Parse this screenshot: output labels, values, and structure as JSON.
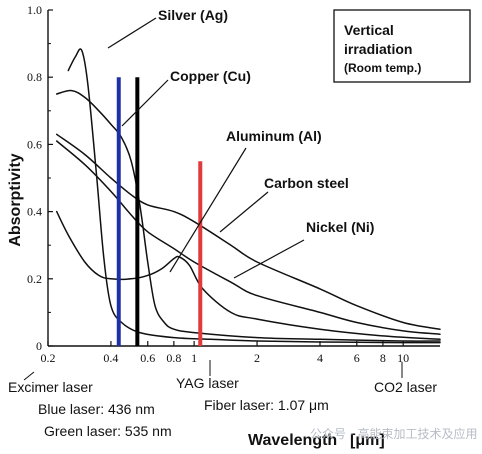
{
  "chart_data": {
    "type": "line",
    "ylabel": "Absorptivity",
    "xlabel": "Wavelength",
    "xlabel_unit": "[μm]",
    "x_scale": "log",
    "xlim": [
      0.2,
      15
    ],
    "ylim": [
      0,
      1.0
    ],
    "y_ticks": [
      0,
      0.2,
      0.4,
      0.6,
      0.8,
      1.0
    ],
    "y_tick_labels": [
      "0",
      "0.2",
      "0.4",
      "0.6",
      "0.8",
      "1.0"
    ],
    "x_ticks": [
      0.2,
      0.4,
      0.6,
      0.8,
      1,
      2,
      4,
      6,
      8,
      10
    ],
    "x_tick_labels": [
      "0.2",
      "0.4",
      "0.6",
      "0.8",
      "1",
      "2",
      "4",
      "6",
      "8",
      "10"
    ],
    "annotation": {
      "line1": "Vertical",
      "line2": "irradiation",
      "line3": "(Room temp.)"
    },
    "series": [
      {
        "name": "Silver (Ag)",
        "points": [
          [
            0.25,
            0.82
          ],
          [
            0.27,
            0.86
          ],
          [
            0.29,
            0.88
          ],
          [
            0.31,
            0.78
          ],
          [
            0.34,
            0.52
          ],
          [
            0.37,
            0.26
          ],
          [
            0.4,
            0.12
          ],
          [
            0.45,
            0.07
          ],
          [
            0.55,
            0.04
          ],
          [
            0.8,
            0.025
          ],
          [
            1.2,
            0.02
          ],
          [
            2,
            0.015
          ],
          [
            4,
            0.012
          ],
          [
            10,
            0.01
          ],
          [
            15,
            0.01
          ]
        ]
      },
      {
        "name": "Copper (Cu)",
        "points": [
          [
            0.22,
            0.75
          ],
          [
            0.26,
            0.76
          ],
          [
            0.3,
            0.74
          ],
          [
            0.35,
            0.7
          ],
          [
            0.4,
            0.66
          ],
          [
            0.45,
            0.62
          ],
          [
            0.5,
            0.55
          ],
          [
            0.55,
            0.42
          ],
          [
            0.6,
            0.25
          ],
          [
            0.65,
            0.12
          ],
          [
            0.72,
            0.07
          ],
          [
            0.8,
            0.05
          ],
          [
            1.0,
            0.04
          ],
          [
            2,
            0.025
          ],
          [
            4,
            0.02
          ],
          [
            10,
            0.015
          ],
          [
            15,
            0.015
          ]
        ]
      },
      {
        "name": "Aluminum  (Al)",
        "points": [
          [
            0.22,
            0.4
          ],
          [
            0.25,
            0.33
          ],
          [
            0.3,
            0.25
          ],
          [
            0.35,
            0.21
          ],
          [
            0.4,
            0.2
          ],
          [
            0.5,
            0.2
          ],
          [
            0.6,
            0.21
          ],
          [
            0.7,
            0.23
          ],
          [
            0.8,
            0.26
          ],
          [
            0.85,
            0.265
          ],
          [
            0.95,
            0.24
          ],
          [
            1.1,
            0.17
          ],
          [
            1.5,
            0.1
          ],
          [
            2,
            0.08
          ],
          [
            4,
            0.05
          ],
          [
            8,
            0.03
          ],
          [
            15,
            0.02
          ]
        ]
      },
      {
        "name": "Carbon steel",
        "points": [
          [
            0.22,
            0.63
          ],
          [
            0.3,
            0.57
          ],
          [
            0.4,
            0.5
          ],
          [
            0.5,
            0.45
          ],
          [
            0.6,
            0.42
          ],
          [
            0.8,
            0.4
          ],
          [
            1.0,
            0.37
          ],
          [
            1.5,
            0.3
          ],
          [
            2,
            0.25
          ],
          [
            4,
            0.17
          ],
          [
            6,
            0.12
          ],
          [
            10,
            0.07
          ],
          [
            15,
            0.05
          ]
        ]
      },
      {
        "name": "Nickel (Ni)",
        "points": [
          [
            0.22,
            0.61
          ],
          [
            0.3,
            0.54
          ],
          [
            0.4,
            0.46
          ],
          [
            0.5,
            0.39
          ],
          [
            0.6,
            0.34
          ],
          [
            0.8,
            0.29
          ],
          [
            1.0,
            0.25
          ],
          [
            1.5,
            0.19
          ],
          [
            2,
            0.15
          ],
          [
            4,
            0.1
          ],
          [
            6,
            0.07
          ],
          [
            10,
            0.045
          ],
          [
            15,
            0.035
          ]
        ]
      }
    ],
    "lasers": [
      {
        "name": "Excimer laser",
        "wavelength": 0.308,
        "drawn_line": false,
        "color": "#111111"
      },
      {
        "name": "Blue laser: 436 nm",
        "wavelength": 0.436,
        "drawn_line": true,
        "color": "#1f2fa5"
      },
      {
        "name": "Green laser: 535 nm",
        "wavelength": 0.535,
        "drawn_line": true,
        "color": "#000000"
      },
      {
        "name": "YAG laser",
        "wavelength": 1.06,
        "drawn_line": false,
        "color": "#111111"
      },
      {
        "name": "Fiber laser: 1.07 μm",
        "wavelength": 1.07,
        "drawn_line": true,
        "color": "#e03a3a"
      },
      {
        "name": "CO2 laser",
        "wavelength": 10.6,
        "drawn_line": false,
        "color": "#111111"
      }
    ],
    "grid": false,
    "legend": "none"
  },
  "watermark": "公众号 · 高能束加工技术及应用",
  "colors": {
    "blue_laser": "#1f2fa5",
    "green_laser": "#000000",
    "fiber_laser": "#e03a3a",
    "blue_text": "#2233aa",
    "fiber_text": "#e03a3a"
  }
}
